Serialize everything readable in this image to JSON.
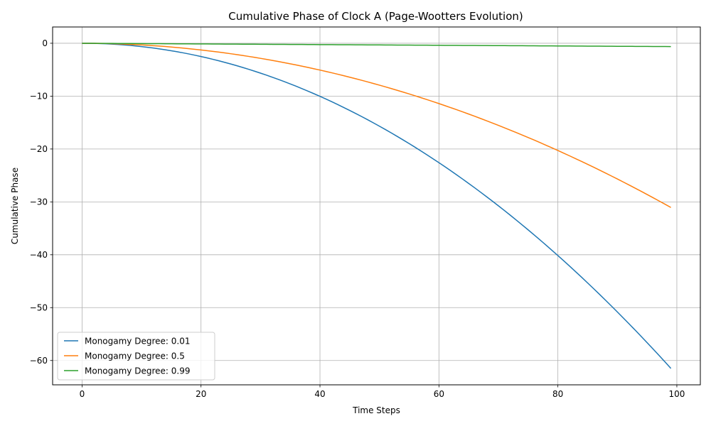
{
  "chart_data": {
    "type": "line",
    "title": "Cumulative Phase of Clock A (Page-Wootters Evolution)",
    "xlabel": "Time Steps",
    "ylabel": "Cumulative Phase",
    "xlim": [
      -4.95,
      103.95
    ],
    "ylim": [
      -64.6,
      3.08
    ],
    "xticks": [
      0,
      20,
      40,
      60,
      80,
      100
    ],
    "yticks": [
      0,
      -10,
      -20,
      -30,
      -40,
      -50,
      -60
    ],
    "grid": true,
    "legend_position": "lower-left",
    "series": [
      {
        "name": "Monogamy Degree: 0.01",
        "color": "#1f77b4",
        "x_max": 99,
        "coef": -0.006274
      },
      {
        "name": "Monogamy Degree: 0.5",
        "color": "#ff7f0e",
        "x_max": 99,
        "coef": -0.003169
      },
      {
        "name": "Monogamy Degree: 0.99",
        "color": "#2ca02c",
        "x_max": 99,
        "linear_coef": -0.00634
      }
    ]
  }
}
